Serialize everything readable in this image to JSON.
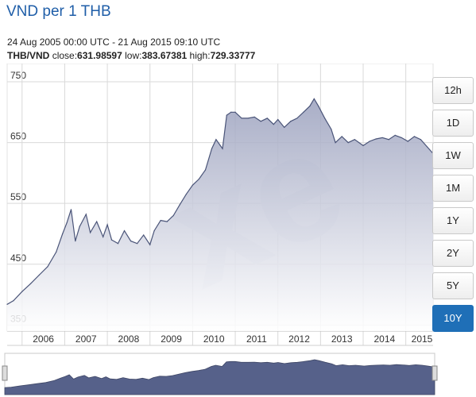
{
  "header": {
    "title": "VND per 1 THB",
    "range": "24 Aug 2005 00:00 UTC - 21 Aug 2015 09:10 UTC",
    "pair": "THB/VND",
    "close_label": "close:",
    "close_value": "631.98597",
    "low_label": "low:",
    "low_value": "383.67381",
    "high_label": "high:",
    "high_value": "729.33777"
  },
  "range_buttons": [
    {
      "label": "12h",
      "active": false
    },
    {
      "label": "1D",
      "active": false
    },
    {
      "label": "1W",
      "active": false
    },
    {
      "label": "1M",
      "active": false
    },
    {
      "label": "1Y",
      "active": false
    },
    {
      "label": "2Y",
      "active": false
    },
    {
      "label": "5Y",
      "active": false
    },
    {
      "label": "10Y",
      "active": true
    }
  ],
  "colors": {
    "title": "#1f5ea8",
    "line": "#4a5478",
    "area_top": "#9aa0bd",
    "area_bottom": "#ffffff",
    "grid": "#d9d9d9",
    "active_button": "#1f6fb7",
    "navigator_fill": "#56618a"
  },
  "chart_data": {
    "type": "area",
    "title": "VND per 1 THB",
    "xlabel": "",
    "ylabel": "",
    "ylim": [
      340,
      780
    ],
    "xlim": [
      2005.65,
      2015.64
    ],
    "y_ticks": [
      350,
      450,
      550,
      650,
      750
    ],
    "x_ticks": [
      "2006",
      "2007",
      "2008",
      "2009",
      "2010",
      "2011",
      "2012",
      "2013",
      "2014",
      "2015"
    ],
    "grid": true,
    "watermark": "xe",
    "series": [
      {
        "x": [
          2005.65,
          2005.8,
          2006.0,
          2006.2,
          2006.4,
          2006.6,
          2006.8,
          2006.95,
          2007.05,
          2007.15,
          2007.25,
          2007.35,
          2007.5,
          2007.6,
          2007.75,
          2007.9,
          2008.0,
          2008.1,
          2008.25,
          2008.4,
          2008.55,
          2008.7,
          2008.85,
          2009.0,
          2009.1,
          2009.25,
          2009.4,
          2009.55,
          2009.7,
          2009.85,
          2010.0,
          2010.15,
          2010.3,
          2010.45,
          2010.55,
          2010.65,
          2010.7,
          2010.8,
          2010.9,
          2011.0,
          2011.15,
          2011.3,
          2011.45,
          2011.6,
          2011.75,
          2011.9,
          2012.0,
          2012.15,
          2012.3,
          2012.45,
          2012.6,
          2012.75,
          2012.85,
          2012.95,
          2013.1,
          2013.25,
          2013.35,
          2013.5,
          2013.65,
          2013.8,
          2014.0,
          2014.15,
          2014.3,
          2014.45,
          2014.6,
          2014.75,
          2014.9,
          2015.05,
          2015.2,
          2015.35,
          2015.5,
          2015.64
        ],
        "y": [
          384,
          390,
          405,
          418,
          432,
          446,
          470,
          500,
          518,
          540,
          488,
          512,
          532,
          502,
          520,
          495,
          515,
          490,
          484,
          505,
          488,
          484,
          498,
          482,
          505,
          522,
          520,
          530,
          548,
          565,
          580,
          590,
          605,
          640,
          655,
          645,
          640,
          695,
          700,
          700,
          690,
          690,
          692,
          685,
          690,
          680,
          688,
          675,
          685,
          690,
          700,
          710,
          722,
          710,
          690,
          672,
          650,
          660,
          650,
          655,
          645,
          652,
          656,
          658,
          655,
          662,
          658,
          652,
          660,
          655,
          643,
          632
        ]
      }
    ]
  }
}
